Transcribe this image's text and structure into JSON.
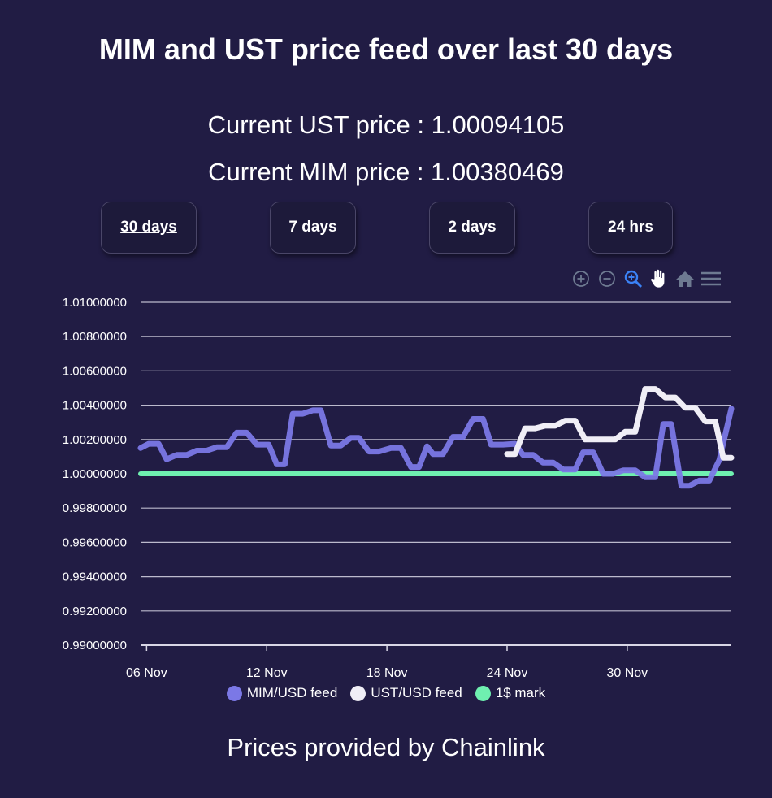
{
  "title": "MIM and UST price feed over last 30 days",
  "prices": {
    "ust_label": "Current UST price : ",
    "ust_value": "1.00094105",
    "mim_label": "Current MIM price : ",
    "mim_value": "1.00380469"
  },
  "range_buttons": [
    {
      "label": "30 days",
      "active": true
    },
    {
      "label": "7 days",
      "active": false
    },
    {
      "label": "2 days",
      "active": false
    },
    {
      "label": "24 hrs",
      "active": false
    }
  ],
  "toolbar": [
    "zoom-in-icon",
    "zoom-out-icon",
    "selection-zoom-icon",
    "pan-hand-icon",
    "home-reset-icon",
    "menu-icon"
  ],
  "colors": {
    "mim": "#7b78e6",
    "ust": "#f0eef6",
    "one_dollar": "#6ff0b0",
    "active_tool": "#3b82f6",
    "inactive_tool": "#6e7a91"
  },
  "footer": "Prices provided by Chainlink",
  "chart_data": {
    "type": "line",
    "x_unit": "day",
    "x_ticks": [
      {
        "label": "06 Nov",
        "x": 6
      },
      {
        "label": "12 Nov",
        "x": 12
      },
      {
        "label": "18 Nov",
        "x": 18
      },
      {
        "label": "24 Nov",
        "x": 24
      },
      {
        "label": "30 Nov",
        "x": 30
      }
    ],
    "xlim": [
      5.7,
      35.2
    ],
    "ylim": [
      0.99,
      1.01
    ],
    "y_ticks": [
      "0.99000000",
      "0.99200000",
      "0.99400000",
      "0.99600000",
      "0.99800000",
      "1.00000000",
      "1.00200000",
      "1.00400000",
      "1.00600000",
      "1.00800000",
      "1.01000000"
    ],
    "series": [
      {
        "name": "MIM/USD feed",
        "color": "#7b78e6",
        "points": [
          [
            5.7,
            1.0015
          ],
          [
            6.1,
            1.00175
          ],
          [
            6.6,
            1.00175
          ],
          [
            7.0,
            1.00085
          ],
          [
            7.5,
            1.0011
          ],
          [
            8.0,
            1.0011
          ],
          [
            8.5,
            1.00135
          ],
          [
            9.0,
            1.00135
          ],
          [
            9.5,
            1.00155
          ],
          [
            10.0,
            1.00155
          ],
          [
            10.5,
            1.0024
          ],
          [
            11.0,
            1.0024
          ],
          [
            11.5,
            1.0017
          ],
          [
            12.1,
            1.0017
          ],
          [
            12.5,
            1.00055
          ],
          [
            12.9,
            1.00055
          ],
          [
            13.3,
            1.0035
          ],
          [
            13.8,
            1.0035
          ],
          [
            14.3,
            1.0037
          ],
          [
            14.7,
            1.0037
          ],
          [
            15.2,
            1.00165
          ],
          [
            15.7,
            1.00165
          ],
          [
            16.2,
            1.0021
          ],
          [
            16.6,
            1.0021
          ],
          [
            17.1,
            1.0013
          ],
          [
            17.6,
            1.0013
          ],
          [
            18.2,
            1.0015
          ],
          [
            18.7,
            1.0015
          ],
          [
            19.2,
            1.0004
          ],
          [
            19.6,
            1.0004
          ],
          [
            20.0,
            1.0016
          ],
          [
            20.3,
            1.00115
          ],
          [
            20.8,
            1.00115
          ],
          [
            21.3,
            1.00215
          ],
          [
            21.8,
            1.00215
          ],
          [
            22.3,
            1.0032
          ],
          [
            22.8,
            1.0032
          ],
          [
            23.2,
            1.0017
          ],
          [
            23.8,
            1.0017
          ],
          [
            24.4,
            1.00175
          ],
          [
            24.8,
            1.0011
          ],
          [
            25.3,
            1.0011
          ],
          [
            25.8,
            1.00065
          ],
          [
            26.3,
            1.00065
          ],
          [
            26.8,
            1.00025
          ],
          [
            27.4,
            1.00025
          ],
          [
            27.8,
            1.00125
          ],
          [
            28.3,
            1.00125
          ],
          [
            28.8,
            1.0
          ],
          [
            29.3,
            1.0
          ],
          [
            29.8,
            1.0002
          ],
          [
            30.4,
            1.0002
          ],
          [
            30.9,
            0.9998
          ],
          [
            31.4,
            0.9998
          ],
          [
            31.8,
            1.0029
          ],
          [
            32.2,
            1.0029
          ],
          [
            32.7,
            0.9993
          ],
          [
            33.1,
            0.9993
          ],
          [
            33.6,
            0.9996
          ],
          [
            34.1,
            0.9996
          ],
          [
            34.6,
            1.0008
          ],
          [
            35.2,
            1.0038
          ]
        ]
      },
      {
        "name": "UST/USD feed",
        "color": "#f0eef6",
        "points": [
          [
            24.0,
            1.00115
          ],
          [
            24.4,
            1.00115
          ],
          [
            24.9,
            1.00265
          ],
          [
            25.4,
            1.00265
          ],
          [
            25.9,
            1.0028
          ],
          [
            26.4,
            1.0028
          ],
          [
            26.9,
            1.0031
          ],
          [
            27.4,
            1.0031
          ],
          [
            27.9,
            1.002
          ],
          [
            28.4,
            1.002
          ],
          [
            28.9,
            1.002
          ],
          [
            29.4,
            1.002
          ],
          [
            29.9,
            1.00245
          ],
          [
            30.4,
            1.00245
          ],
          [
            30.9,
            1.00495
          ],
          [
            31.4,
            1.00495
          ],
          [
            31.9,
            1.00445
          ],
          [
            32.4,
            1.00445
          ],
          [
            32.9,
            1.00385
          ],
          [
            33.4,
            1.00385
          ],
          [
            33.9,
            1.00305
          ],
          [
            34.4,
            1.00305
          ],
          [
            34.8,
            1.00094
          ],
          [
            35.2,
            1.00094
          ]
        ]
      },
      {
        "name": "1$ mark",
        "color": "#6ff0b0",
        "points": [
          [
            5.7,
            1.0
          ],
          [
            35.2,
            1.0
          ]
        ]
      }
    ],
    "legend": [
      "MIM/USD feed",
      "UST/USD feed",
      "1$ mark"
    ],
    "legend_position": "bottom-center",
    "grid": true
  }
}
